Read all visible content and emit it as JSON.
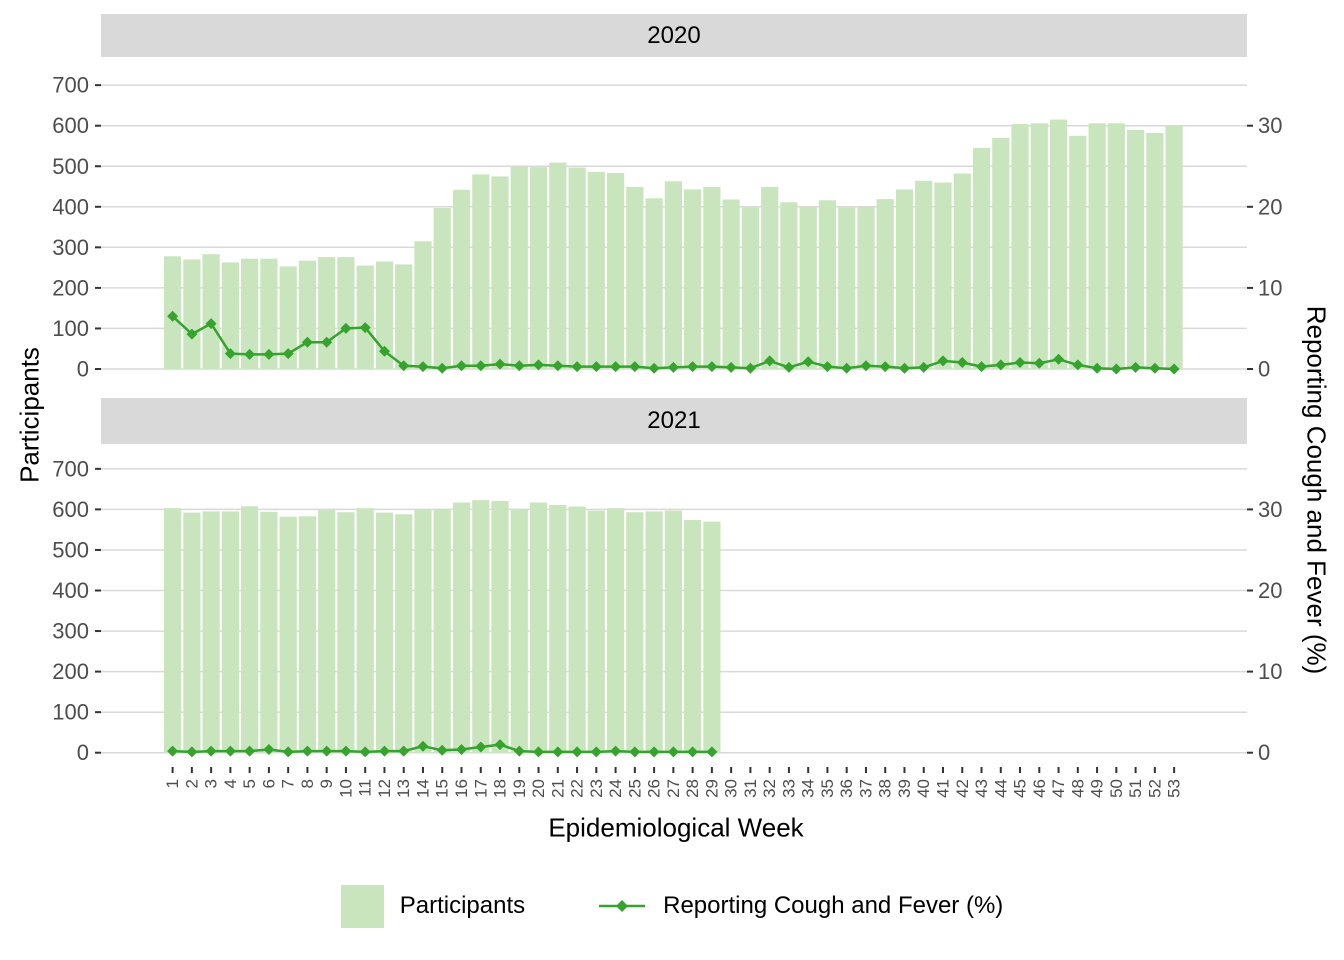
{
  "axes": {
    "left": {
      "title": "Participants",
      "tick_values": [
        0,
        100,
        200,
        300,
        400,
        500,
        600,
        700
      ]
    },
    "right": {
      "title": "Reporting Cough and Fever (%)",
      "tick_values": [
        0,
        10,
        20,
        30
      ],
      "participants_per_percent": 20
    },
    "bottom": {
      "title": "Epidemiological Week"
    }
  },
  "legend": {
    "items": [
      {
        "label": "Participants",
        "swatch": "bar"
      },
      {
        "label": "Reporting Cough and Fever (%)",
        "swatch": "line"
      }
    ]
  },
  "colors": {
    "bar_fill": "#c9e5bd",
    "line": "#35a32d",
    "strip_bg": "#d9d9d9",
    "gridline": "#d9d9d9",
    "tick_label": "#4d4d4d",
    "tick_mark": "#333333"
  },
  "chart_data": [
    {
      "type": "bar+line",
      "facet": "2020",
      "xlabel": "Epidemiological Week",
      "ylim_left": [
        0,
        700
      ],
      "ylim_right": [
        0,
        35
      ],
      "categories": [
        1,
        2,
        3,
        4,
        5,
        6,
        7,
        8,
        9,
        10,
        11,
        12,
        13,
        14,
        15,
        16,
        17,
        18,
        19,
        20,
        21,
        22,
        23,
        24,
        25,
        26,
        27,
        28,
        29,
        30,
        31,
        32,
        33,
        34,
        35,
        36,
        37,
        38,
        39,
        40,
        41,
        42,
        43,
        44,
        45,
        46,
        47,
        48,
        49,
        50,
        51,
        52,
        53
      ],
      "series": [
        {
          "name": "Participants",
          "axis": "left",
          "type": "bar",
          "values": [
            278,
            270,
            283,
            263,
            272,
            272,
            253,
            267,
            276,
            276,
            255,
            265,
            258,
            315,
            397,
            442,
            480,
            475,
            499,
            498,
            509,
            497,
            486,
            483,
            449,
            421,
            463,
            443,
            449,
            418,
            398,
            449,
            411,
            400,
            416,
            398,
            400,
            419,
            443,
            464,
            460,
            482,
            545,
            570,
            604,
            606,
            615,
            575,
            606,
            606,
            590,
            582,
            601
          ]
        },
        {
          "name": "Reporting Cough and Fever (%)",
          "axis": "right",
          "type": "line",
          "values": [
            6.5,
            4.3,
            5.6,
            1.9,
            1.8,
            1.8,
            1.9,
            3.3,
            3.3,
            5.0,
            5.1,
            2.2,
            0.4,
            0.3,
            0.1,
            0.4,
            0.4,
            0.6,
            0.4,
            0.5,
            0.4,
            0.3,
            0.3,
            0.3,
            0.3,
            0.1,
            0.2,
            0.3,
            0.3,
            0.2,
            0.1,
            1.0,
            0.2,
            0.9,
            0.3,
            0.1,
            0.4,
            0.3,
            0.1,
            0.2,
            1.0,
            0.8,
            0.3,
            0.5,
            0.8,
            0.7,
            1.2,
            0.5,
            0.1,
            0.0,
            0.2,
            0.1,
            0.0
          ]
        }
      ]
    },
    {
      "type": "bar+line",
      "facet": "2021",
      "xlabel": "Epidemiological Week",
      "ylim_left": [
        0,
        700
      ],
      "ylim_right": [
        0,
        35
      ],
      "categories": [
        1,
        2,
        3,
        4,
        5,
        6,
        7,
        8,
        9,
        10,
        11,
        12,
        13,
        14,
        15,
        16,
        17,
        18,
        19,
        20,
        21,
        22,
        23,
        24,
        25,
        26,
        27,
        28,
        29
      ],
      "series": [
        {
          "name": "Participants",
          "axis": "left",
          "type": "bar",
          "values": [
            603,
            592,
            595,
            595,
            608,
            594,
            582,
            583,
            598,
            593,
            603,
            592,
            588,
            601,
            602,
            617,
            623,
            621,
            599,
            617,
            611,
            607,
            597,
            603,
            593,
            595,
            597,
            574,
            570
          ]
        },
        {
          "name": "Reporting Cough and Fever (%)",
          "axis": "right",
          "type": "line",
          "values": [
            0.2,
            0.1,
            0.2,
            0.2,
            0.2,
            0.4,
            0.1,
            0.2,
            0.2,
            0.2,
            0.1,
            0.2,
            0.2,
            0.8,
            0.3,
            0.4,
            0.7,
            1.0,
            0.2,
            0.1,
            0.1,
            0.1,
            0.1,
            0.2,
            0.1,
            0.1,
            0.1,
            0.1,
            0.1
          ]
        }
      ]
    }
  ]
}
